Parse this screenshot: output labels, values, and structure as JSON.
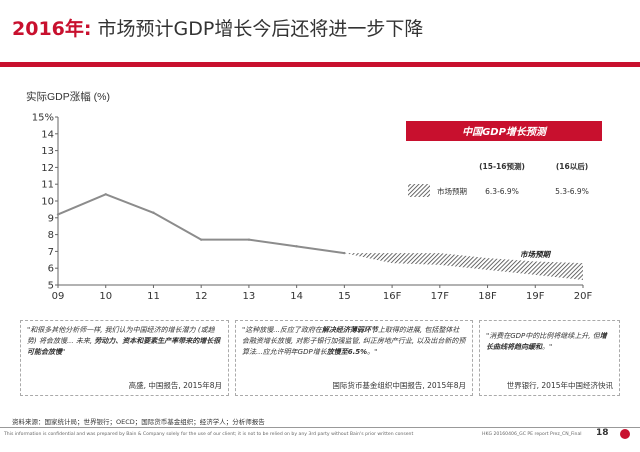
{
  "header": {
    "title_year": "2016年:",
    "title_text": " 市场预计GDP增长今后还将进一步下降"
  },
  "chart_data": {
    "type": "line",
    "ylabel": "实际GDP涨幅 (%)",
    "categories": [
      "09",
      "10",
      "11",
      "12",
      "13",
      "14",
      "15",
      "16F",
      "17F",
      "18F",
      "19F",
      "20F"
    ],
    "ytick_labels": [
      "5",
      "6",
      "7",
      "8",
      "9",
      "10",
      "11",
      "12",
      "13",
      "14",
      "15%"
    ],
    "ylim": [
      5,
      15
    ],
    "grid": false,
    "series": [
      {
        "values": [
          9.2,
          10.4,
          9.3,
          7.7,
          7.7,
          7.3,
          6.9,
          null,
          null,
          null,
          null,
          null
        ]
      }
    ],
    "forecast_band": {
      "name": "市场预期",
      "x": [
        "15",
        "16F",
        "17F",
        "18F",
        "19F",
        "20F"
      ],
      "low": [
        6.9,
        6.3,
        6.2,
        5.9,
        5.6,
        5.3
      ],
      "high": [
        6.9,
        6.9,
        6.9,
        6.6,
        6.4,
        6.3
      ]
    },
    "band_label": "市场预期",
    "legend": {
      "banner": "中国GDP增长预测",
      "col1_header": "(15-16预测)",
      "col2_header": "(16以后)",
      "row_label": "市场预期",
      "row_val1": "6.3-6.9%",
      "row_val2": "5.3-6.9%"
    }
  },
  "quotes": [
    {
      "pre": "\"和很多其他分析师一样, 我们认为中国经济的增长潜力 (或趋势) 将会放慢... 未来, ",
      "bold": "劳动力、资本和要素生产率带来的增长很可能会放慢",
      "post": "\"",
      "source": "高盛, 中国报告, 2015年8月"
    },
    {
      "pre": "\"这种放慢...反应了政府在",
      "bold": "解决经济薄弱环节",
      "mid": "上取得的进展, 包括整体社会融资增长放慢, 对影子银行加强监管, 纠正房地产行业, 以及出台新的预算法...应允许明年GDP增长",
      "bold2": "放慢至6.5%",
      "post": "。\"",
      "source": "国际货币基金组织中国报告, 2015年8月"
    },
    {
      "pre": "\"消费在GDP中的比例将继续上升, 但",
      "bold": "增长曲线将趋向缓和",
      "post": "。\"",
      "source": "世界银行, 2015年中国经济快讯"
    }
  ],
  "footer": {
    "source": "资料来源：国家统计局；世界银行；OECD；国际货币基金组织；经济学人；分析师报告",
    "disclaimer": "This information is confidential and was prepared by Bain & Company solely for the use of our client; it is not to be relied on by any 3rd party without Bain's prior written consent",
    "ref": "HKG        20160406_GC PE report Prez_CN_Final",
    "page": "18"
  },
  "colors": {
    "accent": "#c8102e",
    "line": "#8c8c8c",
    "band": "#555555"
  }
}
